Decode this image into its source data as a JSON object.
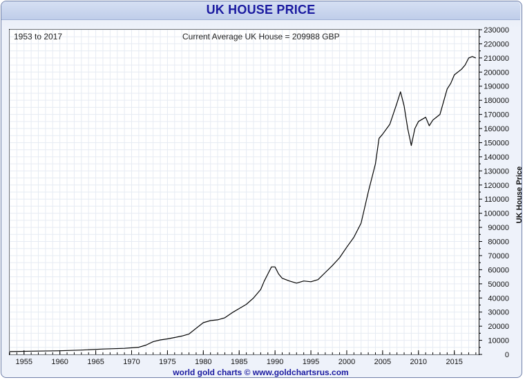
{
  "title": "UK HOUSE PRICE",
  "footer": "world gold charts © www.goldchartsrus.com",
  "chart_data": {
    "type": "line",
    "title": "UK HOUSE PRICE",
    "range_label": "1953 to 2017",
    "current_label": "Current Average UK House = 209988 GBP",
    "ylabel": "UK House Price",
    "xlabel": "",
    "xlim": [
      1953,
      2018.4
    ],
    "ylim": [
      0,
      230000
    ],
    "x_ticks": [
      1955,
      1960,
      1965,
      1970,
      1975,
      1980,
      1985,
      1990,
      1995,
      2000,
      2005,
      2010,
      2015
    ],
    "y_ticks": [
      0,
      10000,
      20000,
      30000,
      40000,
      50000,
      60000,
      70000,
      80000,
      90000,
      100000,
      110000,
      120000,
      130000,
      140000,
      150000,
      160000,
      170000,
      180000,
      190000,
      200000,
      210000,
      220000,
      230000
    ],
    "y_axis_side": "right",
    "grid": true,
    "line_color": "#000000",
    "series": [
      {
        "x": [
          1953,
          1956,
          1960,
          1963,
          1966,
          1969,
          1971,
          1972,
          1973,
          1974,
          1975,
          1976,
          1977,
          1978,
          1979,
          1980,
          1981,
          1982,
          1983,
          1984,
          1985,
          1986,
          1987,
          1988,
          1988.5,
          1989,
          1989.5,
          1990,
          1990.5,
          1991,
          1992,
          1993,
          1994,
          1995,
          1996,
          1997,
          1998,
          1999,
          2000,
          2001,
          2002,
          2003,
          2004,
          2004.5,
          2005,
          2006,
          2007,
          2007.5,
          2008,
          2008.5,
          2009,
          2009.5,
          2010,
          2011,
          2011.5,
          2012,
          2013,
          2014,
          2014.5,
          2015,
          2016,
          2016.5,
          2017,
          2017.5,
          2018
        ],
        "y": [
          2000,
          2300,
          2600,
          3100,
          3800,
          4300,
          5100,
          6600,
          9000,
          10300,
          11000,
          12000,
          13000,
          14500,
          18500,
          22500,
          24000,
          24500,
          26000,
          29500,
          32500,
          35500,
          40000,
          46000,
          52000,
          57000,
          62000,
          62000,
          57000,
          54000,
          52000,
          50500,
          52000,
          51500,
          53000,
          58000,
          63000,
          68500,
          76000,
          83000,
          93000,
          115000,
          135000,
          153000,
          156000,
          163000,
          178000,
          186000,
          176000,
          160000,
          148000,
          160000,
          165000,
          168000,
          162000,
          166000,
          170000,
          188000,
          192000,
          198000,
          202000,
          205000,
          210000,
          211000,
          209988
        ]
      }
    ]
  }
}
